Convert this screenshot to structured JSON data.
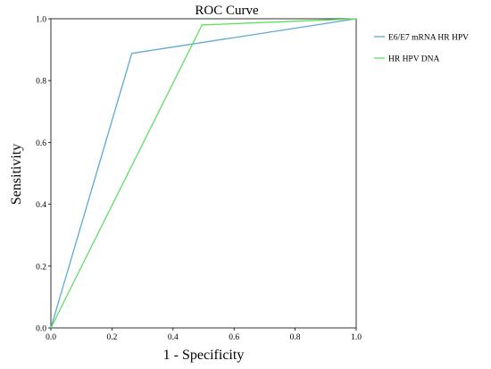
{
  "chart_data": {
    "type": "line",
    "title": "ROC Curve",
    "xlabel": "1 - Specificity",
    "ylabel": "Sensitivity",
    "xlim": [
      0,
      1
    ],
    "ylim": [
      0,
      1
    ],
    "x_ticks": [
      "0.0",
      "0.2",
      "0.4",
      "0.6",
      "0.8",
      "1.0"
    ],
    "y_ticks": [
      "0.0",
      "0.2",
      "0.4",
      "0.6",
      "0.8",
      "1.0"
    ],
    "grid": false,
    "legend_position": "right",
    "series": [
      {
        "name": "E6/E7 mRNA HR HPV",
        "color": "#5aa9d6",
        "points": [
          {
            "x": 0,
            "y": 0
          },
          {
            "x": 0.265,
            "y": 0.888
          },
          {
            "x": 1,
            "y": 1
          }
        ]
      },
      {
        "name": "HR HPV DNA",
        "color": "#5fe05f",
        "points": [
          {
            "x": 0,
            "y": 0
          },
          {
            "x": 0.495,
            "y": 0.98
          },
          {
            "x": 1,
            "y": 1
          }
        ]
      }
    ]
  }
}
